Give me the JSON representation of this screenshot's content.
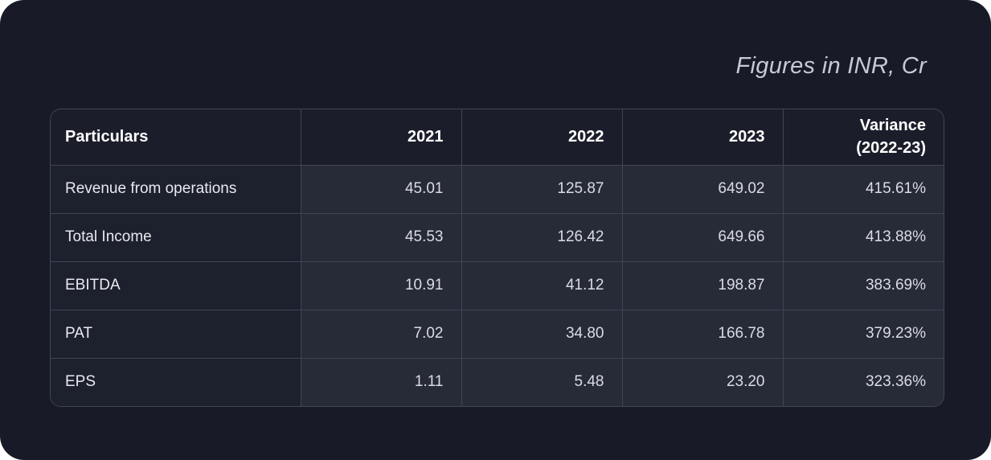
{
  "caption": "Figures in INR, Cr",
  "table": {
    "columns": [
      "Particulars",
      "2021",
      "2022",
      "2023",
      "Variance\n(2022-23)"
    ],
    "rows": [
      [
        "Revenue from operations",
        "45.01",
        "125.87",
        "649.02",
        "415.61%"
      ],
      [
        "Total Income",
        "45.53",
        "126.42",
        "649.66",
        "413.88%"
      ],
      [
        "EBITDA",
        "10.91",
        "41.12",
        "198.87",
        "383.69%"
      ],
      [
        "PAT",
        "7.02",
        "34.80",
        "166.78",
        "379.23%"
      ],
      [
        "EPS",
        "1.11",
        "5.48",
        "23.20",
        "323.36%"
      ]
    ]
  },
  "colors": {
    "card_background": "#181b27",
    "value_cell_background": "#272b38",
    "label_cell_background": "#1d202d",
    "border": "#414453",
    "header_text": "#ffffff",
    "value_text": "#d9dce3",
    "caption_text": "#c7cad4"
  },
  "chart_data": {
    "type": "table",
    "title": "Figures in INR, Cr",
    "unit": "INR Cr",
    "categories": [
      "2021",
      "2022",
      "2023"
    ],
    "series": [
      {
        "name": "Revenue from operations",
        "values": [
          45.01,
          125.87,
          649.02
        ],
        "variance_2022_23_pct": 415.61
      },
      {
        "name": "Total Income",
        "values": [
          45.53,
          126.42,
          649.66
        ],
        "variance_2022_23_pct": 413.88
      },
      {
        "name": "EBITDA",
        "values": [
          10.91,
          41.12,
          198.87
        ],
        "variance_2022_23_pct": 383.69
      },
      {
        "name": "PAT",
        "values": [
          7.02,
          34.8,
          166.78
        ],
        "variance_2022_23_pct": 379.23
      },
      {
        "name": "EPS",
        "values": [
          1.11,
          5.48,
          23.2
        ],
        "variance_2022_23_pct": 323.36
      }
    ]
  }
}
